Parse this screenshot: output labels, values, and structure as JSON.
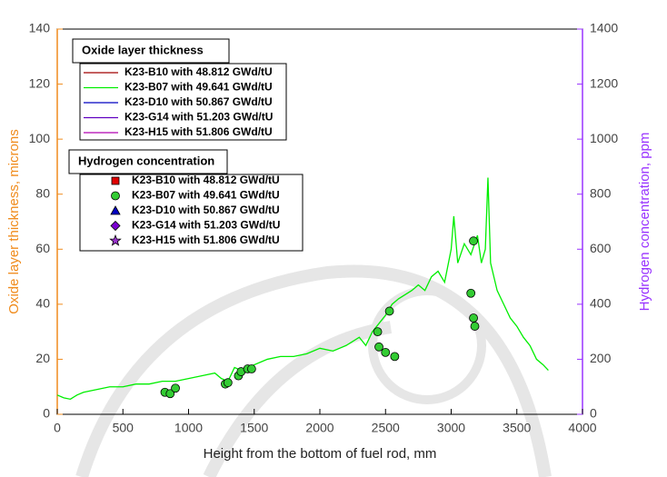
{
  "chart_data": {
    "type": "line",
    "x_label": "Height from the bottom of fuel rod, mm",
    "y_label": "Oxide layer thickness, microns",
    "y2_label": "Hydrogen concentration, ppm",
    "y_label_color": "#f08c1e",
    "y2_label_color": "#9933ff",
    "xlim": [
      0,
      4000
    ],
    "xticks": [
      0,
      500,
      1000,
      1500,
      2000,
      2500,
      3000,
      3500,
      4000
    ],
    "ylim": [
      0,
      140
    ],
    "yticks": [
      0,
      20,
      40,
      60,
      80,
      100,
      120,
      140
    ],
    "y2lim": [
      0,
      1400
    ],
    "y2ticks": [
      0,
      200,
      400,
      600,
      800,
      1000,
      1200,
      1400
    ],
    "oxide_legend_title": "Oxide layer thickness",
    "hydrogen_legend_title": "Hydrogen concentration",
    "series": [
      {
        "name": "K23-B10 with 48.812 GWd/tU",
        "type": "line",
        "color": "#a00000",
        "x": [],
        "values": []
      },
      {
        "name": "K23-B07 with 49.641 GWd/tU",
        "type": "line",
        "color": "#00ee00",
        "x": [
          0,
          50,
          100,
          150,
          200,
          300,
          400,
          500,
          600,
          700,
          800,
          900,
          1000,
          1100,
          1200,
          1250,
          1300,
          1350,
          1400,
          1500,
          1600,
          1700,
          1800,
          1900,
          2000,
          2100,
          2200,
          2300,
          2350,
          2400,
          2450,
          2500,
          2550,
          2600,
          2700,
          2750,
          2800,
          2850,
          2900,
          2950,
          3000,
          3020,
          3050,
          3100,
          3150,
          3200,
          3230,
          3260,
          3280,
          3300,
          3350,
          3400,
          3450,
          3500,
          3550,
          3600,
          3650,
          3700,
          3740
        ],
        "values": [
          7,
          6,
          5.5,
          7,
          8,
          9,
          10,
          10,
          11,
          11,
          12,
          12,
          13,
          14,
          15,
          13,
          12,
          17,
          16,
          18,
          20,
          21,
          21,
          22,
          24,
          23,
          25,
          28,
          25,
          30,
          33,
          36,
          40,
          42,
          45,
          47,
          45,
          50,
          52,
          48,
          60,
          72,
          55,
          62,
          58,
          65,
          55,
          60,
          86,
          55,
          45,
          40,
          35,
          32,
          28,
          25,
          20,
          18,
          16
        ]
      },
      {
        "name": "K23-D10 with 50.867 GWd/tU",
        "type": "line",
        "color": "#0000c0",
        "x": [],
        "values": []
      },
      {
        "name": "K23-G14 with 51.203 GWd/tU",
        "type": "line",
        "color": "#6000c0",
        "x": [],
        "values": []
      },
      {
        "name": "K23-H15 with 51.806 GWd/tU",
        "type": "line",
        "color": "#b000b0",
        "x": [],
        "values": []
      },
      {
        "name": "K23-B10 with 48.812 GWd/tU",
        "type": "scatter",
        "marker": "square",
        "color": "#e00000",
        "axis": "y2",
        "x": [],
        "values": []
      },
      {
        "name": "K23-B07 with 49.641 GWd/tU",
        "type": "scatter",
        "marker": "circle",
        "color": "#33cc33",
        "axis": "y2",
        "x": [
          820,
          860,
          900,
          1280,
          1300,
          1380,
          1400,
          1450,
          1480,
          2440,
          2450,
          2500,
          2530,
          2570,
          3150,
          3170,
          3170,
          3180
        ],
        "values": [
          80,
          75,
          95,
          110,
          115,
          140,
          155,
          165,
          165,
          300,
          245,
          225,
          375,
          210,
          440,
          630,
          350,
          320
        ]
      },
      {
        "name": "K23-D10 with 50.867 GWd/tU",
        "type": "scatter",
        "marker": "triangle",
        "color": "#0000c0",
        "axis": "y2",
        "x": [],
        "values": []
      },
      {
        "name": "K23-G14 with 51.203 GWd/tU",
        "type": "scatter",
        "marker": "diamond",
        "color": "#7a00d0",
        "axis": "y2",
        "x": [],
        "values": []
      },
      {
        "name": "K23-H15 with 51.806 GWd/tU",
        "type": "scatter",
        "marker": "star",
        "color": "#9933cc",
        "axis": "y2",
        "x": [],
        "values": []
      }
    ]
  }
}
